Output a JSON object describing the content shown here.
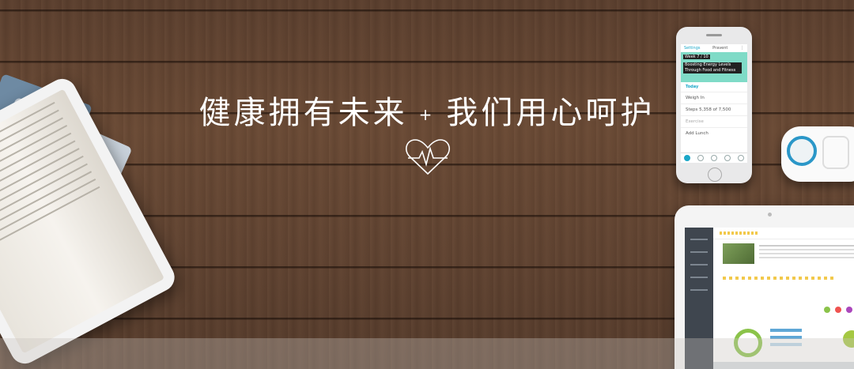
{
  "headline": {
    "left": "健康拥有未来",
    "separator": "+",
    "right": "我们用心呵护"
  },
  "phone": {
    "settings": "Settings",
    "title": "Pravent",
    "week": "Week 7 / 10",
    "caption": "Boosting Energy Levels Through Food and Fitness",
    "today": "Today",
    "rows": [
      "Weigh In",
      "Steps 5,358 of 7,500",
      "Exercise",
      "Add Lunch"
    ]
  },
  "icons": {
    "heart": "heartbeat-icon"
  },
  "colors": {
    "wood": "#604331",
    "accent_teal": "#7fdbc7",
    "accent_blue": "#1aa7c8"
  }
}
